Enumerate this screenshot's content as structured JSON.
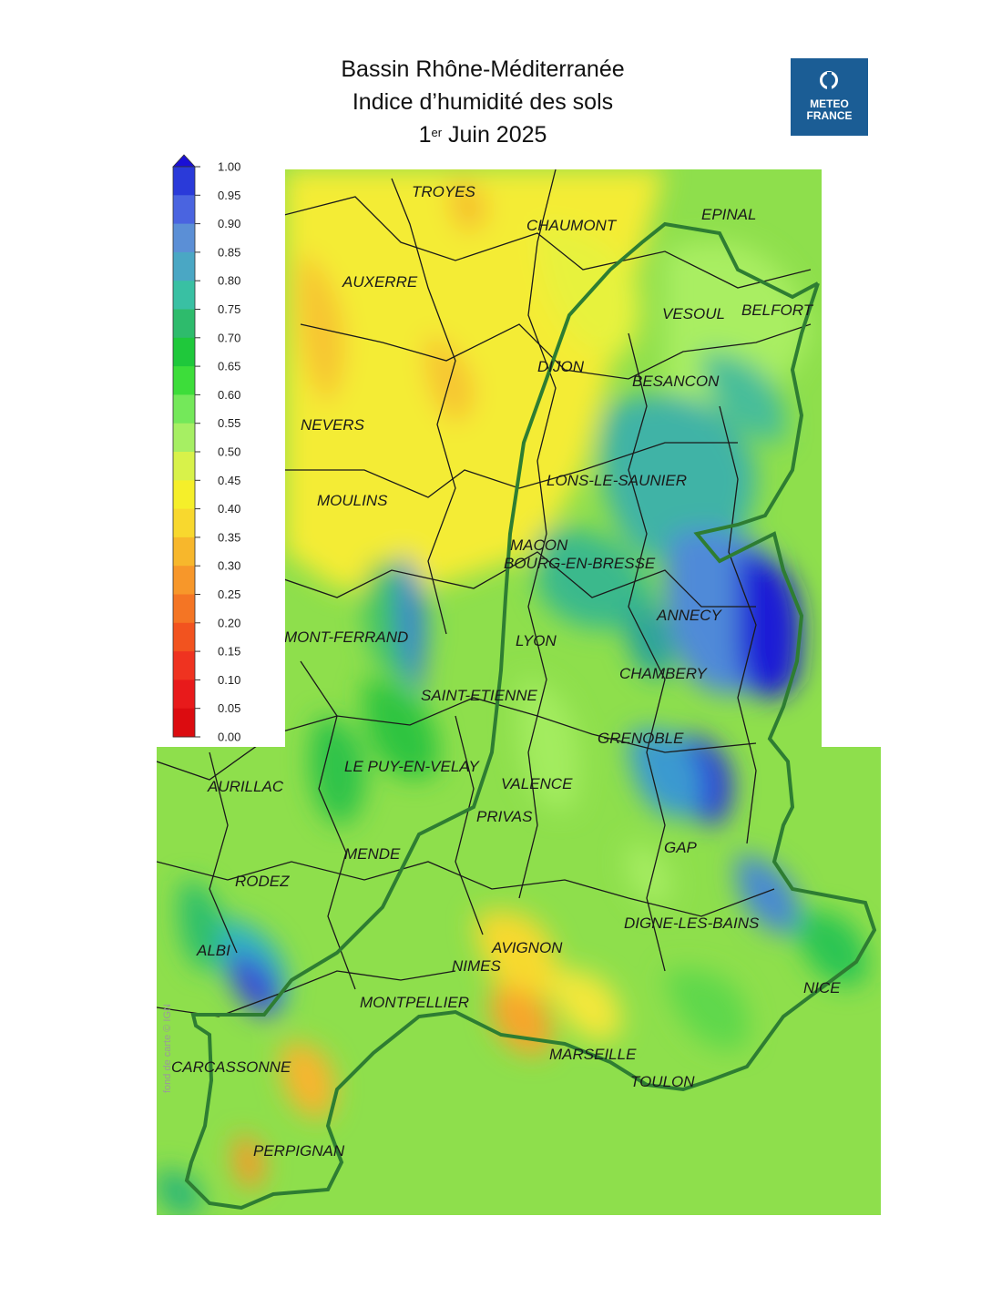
{
  "header": {
    "line1": "Bassin Rhône-Méditerranée",
    "line2": "Indice d’humidité des sols",
    "date_day": "1",
    "date_suffix": "er",
    "date_rest": " Juin 2025"
  },
  "logo": {
    "line1": "METEO",
    "line2": "FRANCE",
    "color": "#1b5d95"
  },
  "legend": {
    "ticks": [
      "1.00",
      "0.95",
      "0.90",
      "0.85",
      "0.80",
      "0.75",
      "0.70",
      "0.65",
      "0.60",
      "0.55",
      "0.50",
      "0.45",
      "0.40",
      "0.35",
      "0.30",
      "0.25",
      "0.20",
      "0.15",
      "0.10",
      "0.05",
      "0.00"
    ],
    "colors": [
      "#1a0fd6",
      "#2a3ad9",
      "#4a64e0",
      "#5b8fd6",
      "#4aa7c4",
      "#39c0a3",
      "#2ebb6c",
      "#1fc83b",
      "#3ddd3a",
      "#74e85a",
      "#a6ef63",
      "#d8f24a",
      "#f5ef2a",
      "#f8d82e",
      "#f7b72c",
      "#f7972a",
      "#f47524",
      "#f2531f",
      "#ef3320",
      "#e81a1b",
      "#dc0c10"
    ]
  },
  "cities": [
    {
      "name": "TROYES"
    },
    {
      "name": "CHAUMONT"
    },
    {
      "name": "EPINAL"
    },
    {
      "name": "AUXERRE"
    },
    {
      "name": "VESOUL"
    },
    {
      "name": "BELFORT"
    },
    {
      "name": "DIJON"
    },
    {
      "name": "BESANCON"
    },
    {
      "name": "NEVERS"
    },
    {
      "name": "LONS-LE-SAUNIER"
    },
    {
      "name": "MOULINS"
    },
    {
      "name": "MACON"
    },
    {
      "name": "BOURG-EN-BRESSE"
    },
    {
      "name": "ANNECY"
    },
    {
      "name": "MONT-FERRAND"
    },
    {
      "name": "LYON"
    },
    {
      "name": "CHAMBERY"
    },
    {
      "name": "SAINT-ETIENNE"
    },
    {
      "name": "GRENOBLE"
    },
    {
      "name": "LE PUY-EN-VELAY"
    },
    {
      "name": "VALENCE"
    },
    {
      "name": "AURILLAC"
    },
    {
      "name": "PRIVAS"
    },
    {
      "name": "GAP"
    },
    {
      "name": "MENDE"
    },
    {
      "name": "RODEZ"
    },
    {
      "name": "DIGNE-LES-BAINS"
    },
    {
      "name": "AVIGNON"
    },
    {
      "name": "ALBI"
    },
    {
      "name": "NIMES"
    },
    {
      "name": "NICE"
    },
    {
      "name": "MONTPELLIER"
    },
    {
      "name": "MARSEILLE"
    },
    {
      "name": "CARCASSONNE"
    },
    {
      "name": "TOULON"
    },
    {
      "name": "PERPIGNAN"
    }
  ],
  "credit": "fond de carte © IGN"
}
